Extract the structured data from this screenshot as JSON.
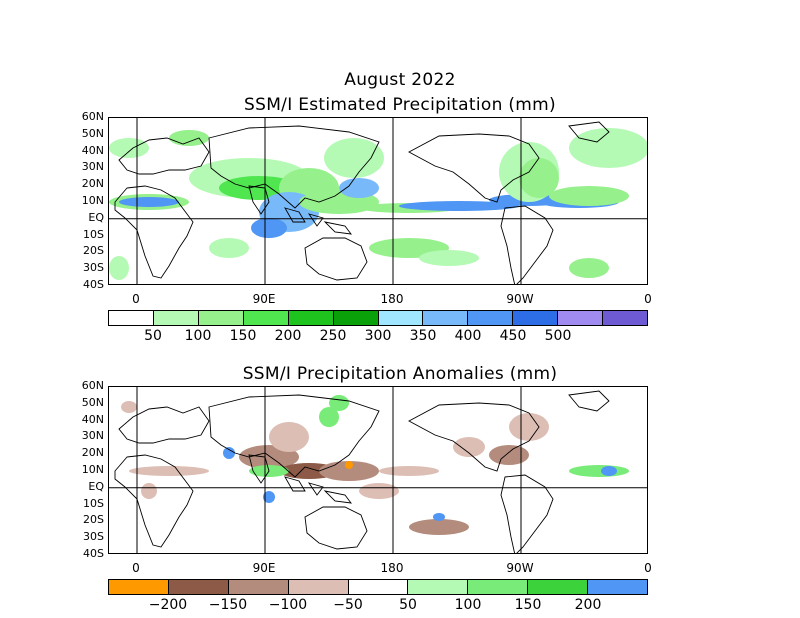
{
  "header": {
    "month": "August 2022"
  },
  "panel1": {
    "title": "SSM/I Estimated Precipitation (mm)",
    "lat_labels": [
      "60N",
      "50N",
      "40N",
      "30N",
      "20N",
      "10N",
      "EQ",
      "10S",
      "20S",
      "30S",
      "40S"
    ],
    "lon_labels": [
      "0",
      "90E",
      "180",
      "90W",
      "0"
    ],
    "colorbar": {
      "colors": [
        "#ffffff",
        "#b4fab4",
        "#96f08c",
        "#50e650",
        "#1ec31e",
        "#0aa00a",
        "#a0e6ff",
        "#78b9fa",
        "#5096f5",
        "#2d6ee6",
        "#a08cf0",
        "#6e5ad2"
      ],
      "labels": [
        "50",
        "100",
        "150",
        "200",
        "250",
        "300",
        "350",
        "400",
        "450",
        "500"
      ]
    }
  },
  "panel2": {
    "title": "SSM/I Precipitation Anomalies (mm)",
    "lat_labels": [
      "60N",
      "50N",
      "40N",
      "30N",
      "20N",
      "10N",
      "EQ",
      "10S",
      "20S",
      "30S",
      "40S"
    ],
    "lon_labels": [
      "0",
      "90E",
      "180",
      "90W",
      "0"
    ],
    "colorbar": {
      "colors": [
        "#ff9900",
        "#8c5a46",
        "#b48c7d",
        "#dcbeb4",
        "#ffffff",
        "#b4fab4",
        "#78eb78",
        "#3cd23c",
        "#5096f5"
      ],
      "labels": [
        "−200",
        "−150",
        "−100",
        "−50",
        "50",
        "100",
        "150",
        "200"
      ]
    }
  }
}
